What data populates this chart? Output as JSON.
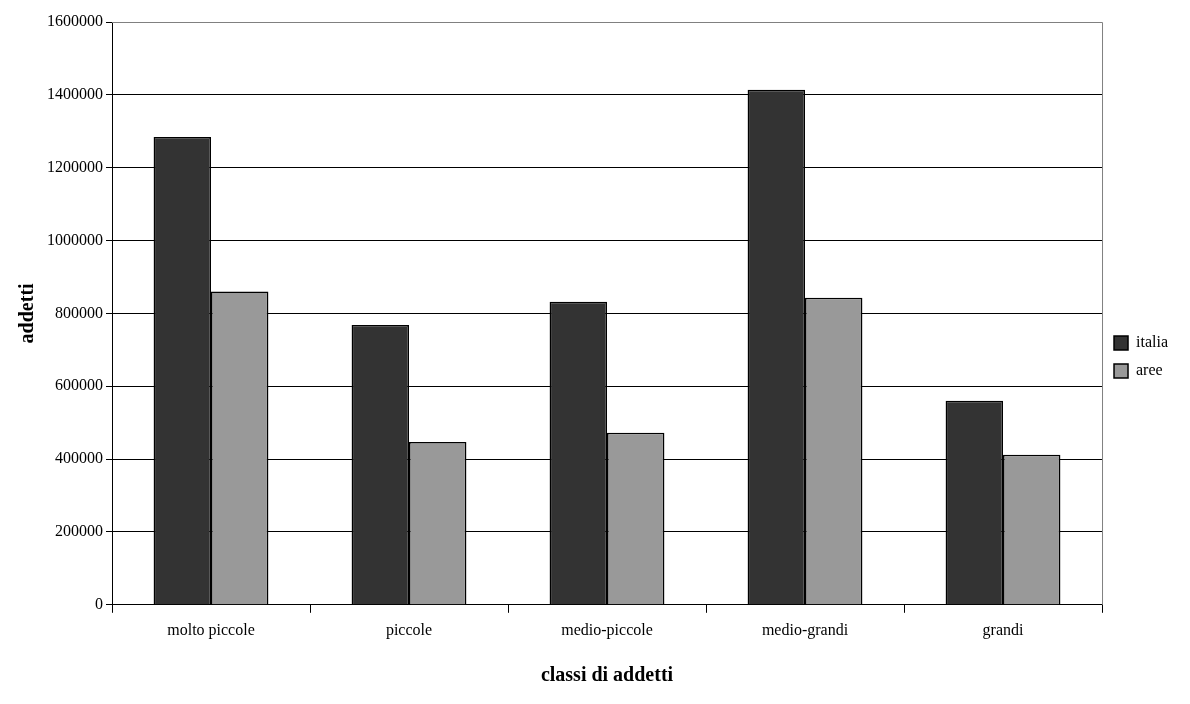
{
  "chart_data": {
    "type": "bar",
    "xlabel": "classi di addetti",
    "ylabel": "addetti",
    "categories": [
      "molto piccole",
      "piccole",
      "medio-piccole",
      "medio-grandi",
      "grandi"
    ],
    "series": [
      {
        "name": "italia",
        "color": "#333333",
        "values": [
          1284000,
          768000,
          832000,
          1414000,
          560000
        ]
      },
      {
        "name": "aree",
        "color": "#999999",
        "values": [
          860000,
          447000,
          472000,
          843000,
          412000
        ]
      }
    ],
    "ylim": [
      0,
      1600000
    ],
    "yticks": [
      0,
      200000,
      400000,
      600000,
      800000,
      1000000,
      1200000,
      1400000,
      1600000
    ],
    "grid": "y",
    "legend": "right"
  }
}
